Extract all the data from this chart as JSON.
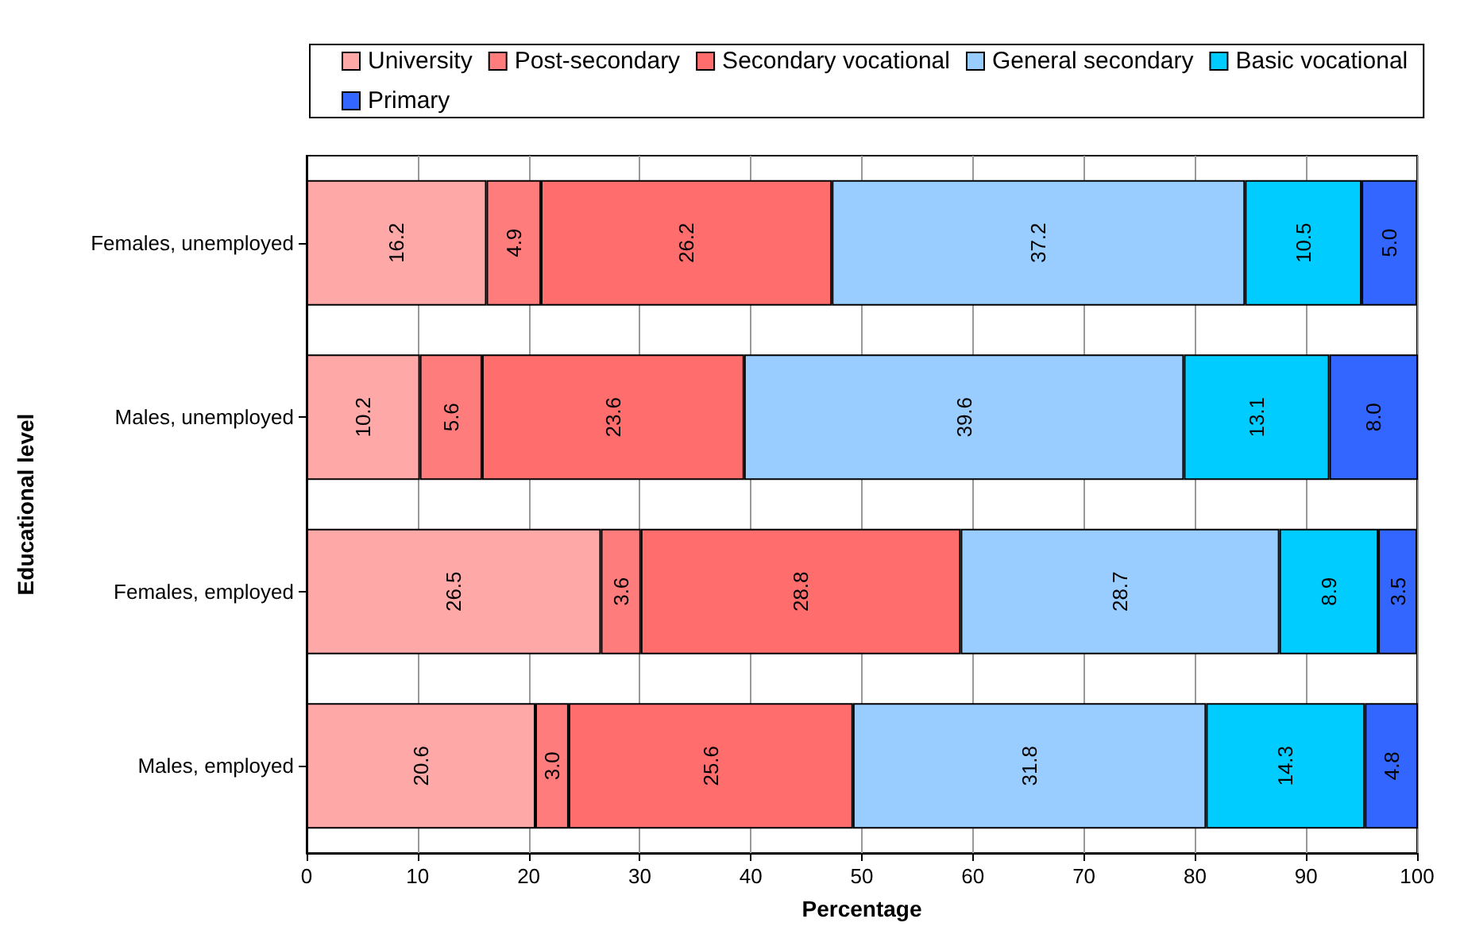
{
  "chart_data": {
    "type": "bar",
    "orientation": "horizontal",
    "stacked": true,
    "xlabel": "Percentage",
    "ylabel": "Educational level",
    "categories": [
      "Females, unemployed",
      "Males, unemployed",
      "Females, employed",
      "Males, employed"
    ],
    "series": [
      {
        "name": "University",
        "color": "#ffa8a8",
        "values": [
          16.2,
          10.2,
          26.5,
          20.6
        ],
        "value_labels": [
          "16.2",
          "10.2",
          "26.5",
          "20.6"
        ]
      },
      {
        "name": "Post-secondary",
        "color": "#ff7c7c",
        "values": [
          4.9,
          5.6,
          3.6,
          3.0
        ],
        "value_labels": [
          "4.9",
          "5.6",
          "3.6",
          "3.0"
        ]
      },
      {
        "name": "Secondary vocational",
        "color": "#ff6d6d",
        "values": [
          26.2,
          23.6,
          28.8,
          25.6
        ],
        "value_labels": [
          "26.2",
          "23.6",
          "28.8",
          "25.6"
        ]
      },
      {
        "name": "General secondary",
        "color": "#99ccff",
        "values": [
          37.2,
          39.6,
          28.7,
          31.8
        ],
        "value_labels": [
          "37.2",
          "39.6",
          "28.7",
          "31.8"
        ]
      },
      {
        "name": "Basic vocational",
        "color": "#00ccff",
        "values": [
          10.5,
          13.1,
          8.9,
          14.3
        ],
        "value_labels": [
          "10.5",
          "13.1",
          "8.9",
          "14.3"
        ]
      },
      {
        "name": "Primary",
        "color": "#3366ff",
        "values": [
          5.0,
          8.0,
          3.5,
          4.8
        ],
        "value_labels": [
          "5.0",
          "8.0",
          "3.5",
          "4.8"
        ]
      }
    ],
    "xlim": [
      0,
      100
    ],
    "xticks": [
      0,
      10,
      20,
      30,
      40,
      50,
      60,
      70,
      80,
      90,
      100
    ],
    "grid": "x",
    "legend": "top"
  }
}
